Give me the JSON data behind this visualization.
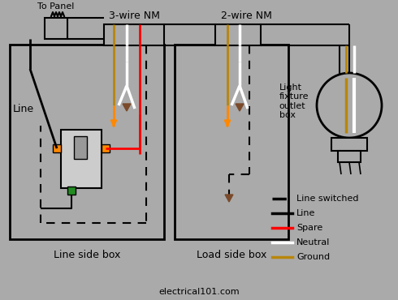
{
  "bg_color": "#aaaaaa",
  "watermark": "electrical101.com",
  "blk": "#000000",
  "red": "#ff0000",
  "wht": "#ffffff",
  "gld": "#b8860b",
  "brn": "#7a4a2a",
  "org": "#ff8800",
  "labels": {
    "to_panel": "To Panel",
    "three_wire": "3-wire NM",
    "two_wire": "2-wire NM",
    "line": "Line",
    "line_side": "Line side box",
    "load_side": "Load side box",
    "light_fixture": "Light\nfixture\noutlet\nbox"
  },
  "legend": [
    {
      "ls": "dashed",
      "color": "#000000",
      "label": "Line switched"
    },
    {
      "ls": "solid",
      "color": "#000000",
      "label": "Line"
    },
    {
      "ls": "solid",
      "color": "#ff0000",
      "label": "Spare"
    },
    {
      "ls": "solid",
      "color": "#ffffff",
      "label": "Neutral"
    },
    {
      "ls": "solid",
      "color": "#b8860b",
      "label": "Ground"
    }
  ]
}
